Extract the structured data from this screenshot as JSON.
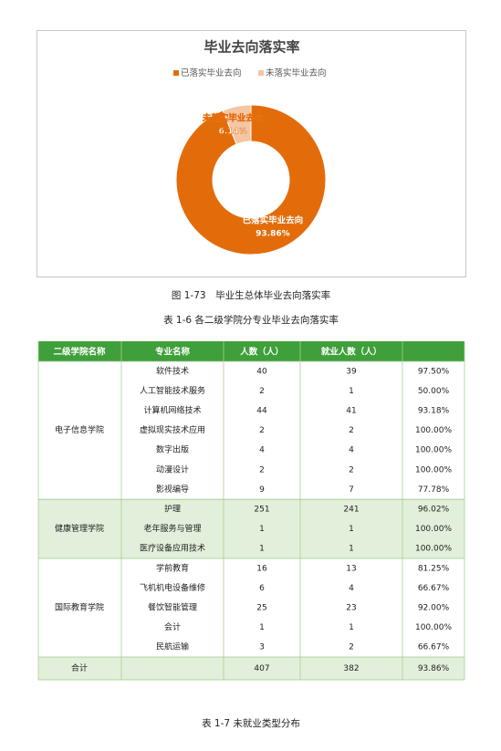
{
  "chart_data": {
    "type": "pie",
    "title": "毕业去向落实率",
    "categories": [
      "已落实毕业去向",
      "未落实毕业去向"
    ],
    "values": [
      93.86,
      6.14
    ],
    "value_labels": [
      "93.86%",
      "6.14%"
    ],
    "colors": [
      "#e36c0a",
      "#f5c6a4"
    ],
    "legend": "top",
    "donut": true
  },
  "figure_caption": "图 1-73　毕业生总体毕业去向落实率",
  "table_caption": "表 1-6 各二级学院分专业毕业去向落实率",
  "table": {
    "header": [
      "二级学院名称",
      "专业名称",
      "人数（人）",
      "就业人数（人）"
    ],
    "groups": [
      {
        "name": "电子信息学院",
        "rows": [
          [
            "软件技术",
            40,
            39,
            "97.50%"
          ],
          [
            "人工智能技术服务",
            2,
            1,
            "50.00%"
          ],
          [
            "计算机网络技术",
            44,
            41,
            "93.18%"
          ],
          [
            "虚拟现实技术应用",
            2,
            2,
            "100.00%"
          ],
          [
            "数字出版",
            4,
            4,
            "100.00%"
          ],
          [
            "动漫设计",
            2,
            2,
            "100.00%"
          ],
          [
            "影视编导",
            9,
            7,
            "77.78%"
          ]
        ]
      },
      {
        "name": "健康管理学院",
        "rows": [
          [
            "护理",
            251,
            241,
            "96.02%"
          ],
          [
            "老年服务与管理",
            1,
            1,
            "100.00%"
          ],
          [
            "医疗设备应用技术",
            1,
            1,
            "100.00%"
          ]
        ]
      },
      {
        "name": "国际教育学院",
        "rows": [
          [
            "学前教育",
            16,
            13,
            "81.25%"
          ],
          [
            "飞机机电设备维修",
            6,
            4,
            "66.67%"
          ],
          [
            "餐饮智能管理",
            25,
            23,
            "92.00%"
          ],
          [
            "会计",
            1,
            1,
            "100.00%"
          ],
          [
            "民航运输",
            3,
            2,
            "66.67%"
          ]
        ]
      }
    ],
    "total": [
      "合计",
      407,
      382,
      "93.86%"
    ]
  },
  "next_caption": "表 1-7 未就业类型分布"
}
